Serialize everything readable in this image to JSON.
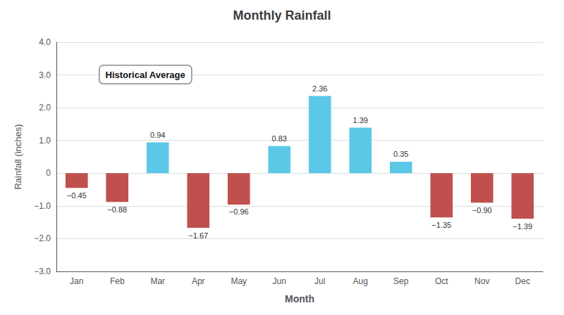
{
  "chart_data": {
    "type": "bar",
    "title": "Monthly Rainfall",
    "categories": [
      "Jan",
      "Feb",
      "Mar",
      "Apr",
      "May",
      "Jun",
      "Jul",
      "Aug",
      "Sep",
      "Oct",
      "Nov",
      "Dec"
    ],
    "values": [
      -0.45,
      -0.88,
      0.94,
      -1.67,
      -0.96,
      0.83,
      2.36,
      1.39,
      0.35,
      -1.35,
      -0.9,
      -1.39
    ],
    "value_labels": [
      "−0.45",
      "−0.88",
      "0.94",
      "−1.67",
      "−0.96",
      "0.83",
      "2.36",
      "1.39",
      "0.35",
      "−1.35",
      "−0.90",
      "−1.39"
    ],
    "colors": [
      "#c0504d",
      "#c0504d",
      "#5bc8e8",
      "#c0504d",
      "#c0504d",
      "#5bc8e8",
      "#5bc8e8",
      "#5bc8e8",
      "#5bc8e8",
      "#c0504d",
      "#c0504d",
      "#c0504d"
    ],
    "xlabel": "Month",
    "ylabel": "Rainfall (inches)",
    "ylim": [
      -3.0,
      4.0
    ],
    "yticks": [
      {
        "value": -3.0,
        "label": "−3.0"
      },
      {
        "value": -2.0,
        "label": "−2.0"
      },
      {
        "value": -1.0,
        "label": "−1.0"
      },
      0,
      {
        "value": 1.0,
        "label": "1.0"
      },
      {
        "value": 2.0,
        "label": "2.0"
      },
      {
        "value": 3.0,
        "label": "3.0"
      },
      {
        "value": 4.0,
        "label": "4.0"
      }
    ],
    "annotation": "Historical Average",
    "grid": true,
    "data_labels": true
  }
}
